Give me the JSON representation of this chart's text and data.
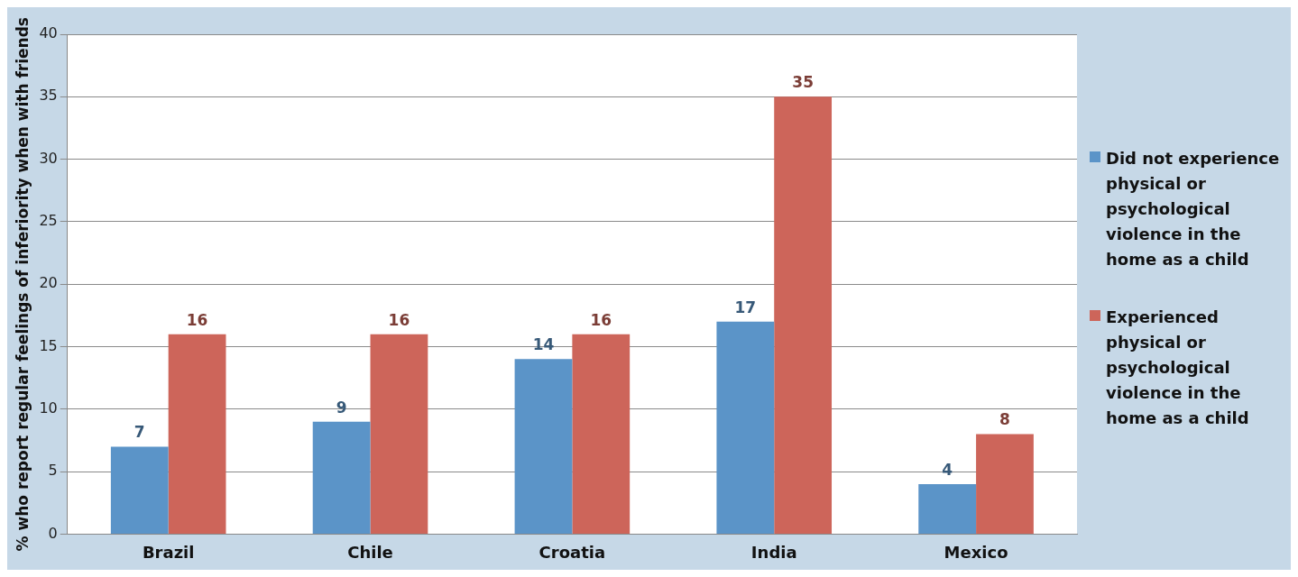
{
  "chart_data": {
    "type": "bar",
    "ylabel": "% who report regular feelings of inferiority when with friends",
    "categories": [
      "Brazil",
      "Chile",
      "Croatia",
      "India",
      "Mexico"
    ],
    "series": [
      {
        "name": "Did not experience physical or psychological violence in the home as a child",
        "color": "#5b94c8",
        "values": [
          7,
          9,
          14,
          17,
          4
        ]
      },
      {
        "name": "Experienced physical or psychological violence in the home as a child",
        "color": "#cd655a",
        "values": [
          16,
          16,
          16,
          35,
          8
        ]
      }
    ],
    "ylim": [
      0,
      40
    ],
    "yticks": [
      0,
      5,
      10,
      15,
      20,
      25,
      30,
      35,
      40
    ],
    "grid": "y",
    "legend": "right",
    "data_labels": true
  }
}
